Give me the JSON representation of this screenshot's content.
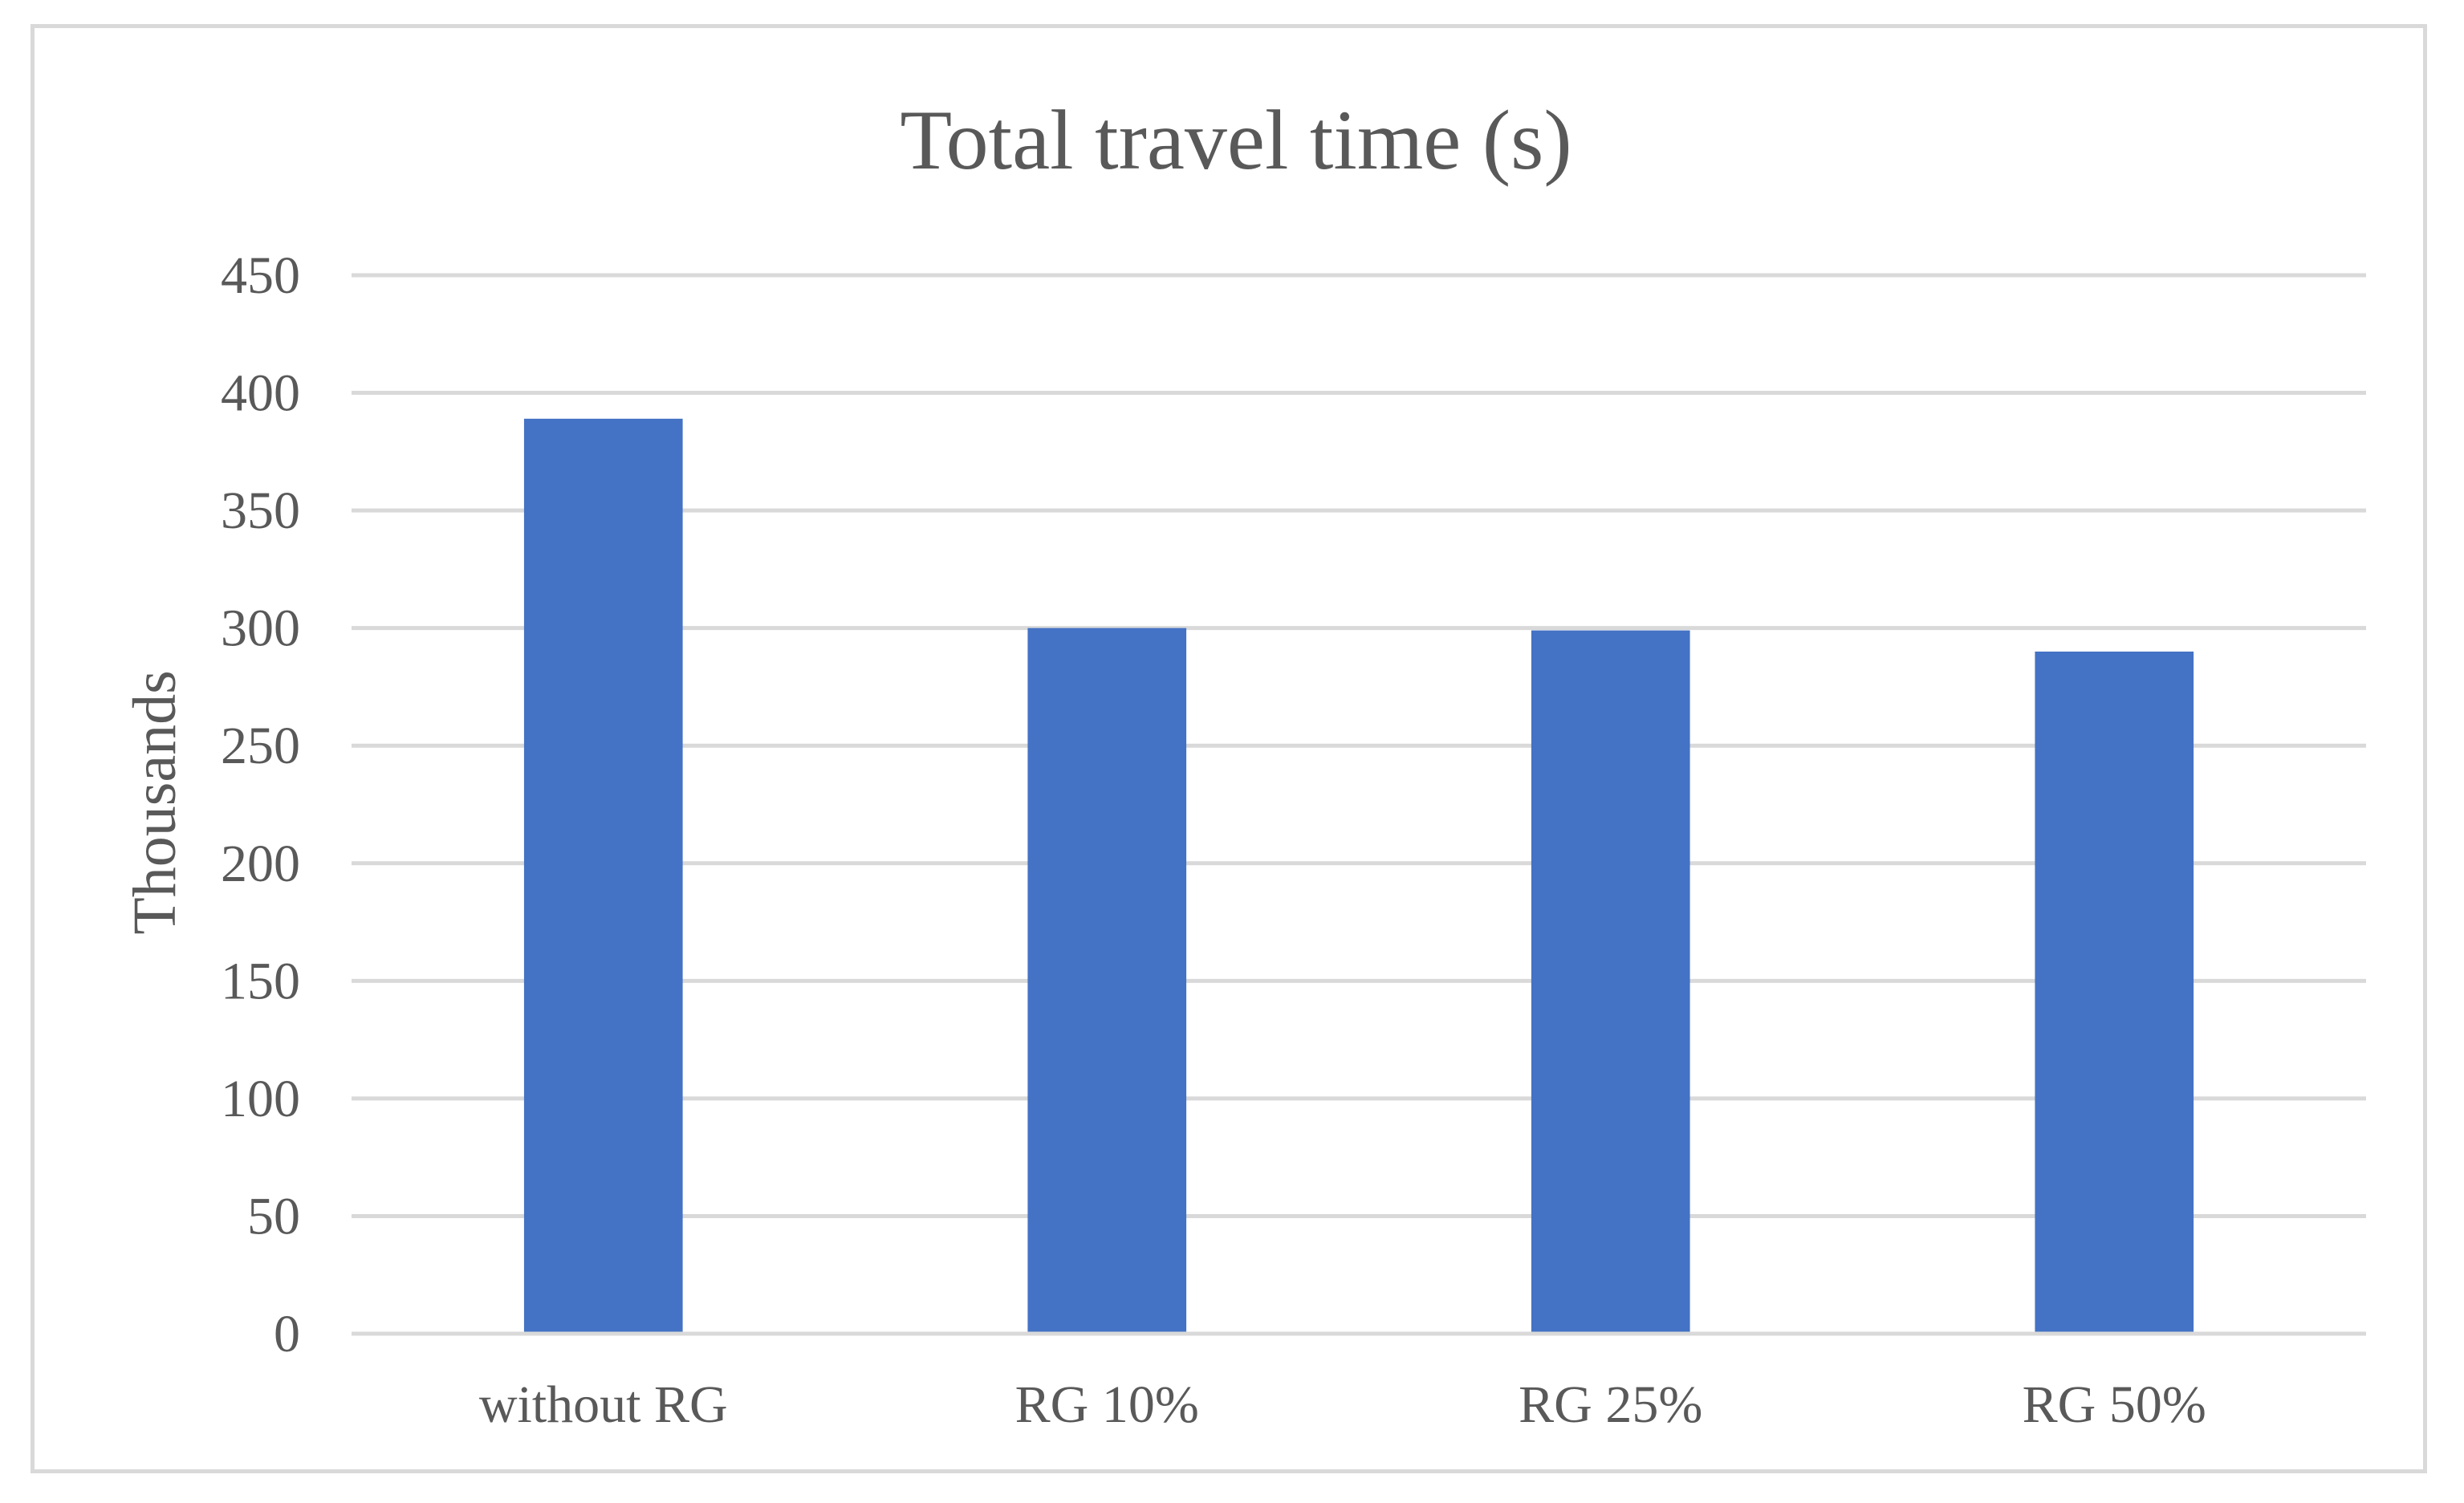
{
  "chart_data": {
    "type": "bar",
    "title": "Total travel time (s)",
    "xlabel": "",
    "ylabel": "Thousands",
    "categories": [
      "without RG",
      "RG 10%",
      "RG 25%",
      "RG 50%"
    ],
    "values": [
      389,
      300,
      299,
      290
    ],
    "ylim": [
      0,
      450
    ],
    "yticks": [
      "0",
      "50",
      "100",
      "150",
      "200",
      "250",
      "300",
      "350",
      "400",
      "450"
    ],
    "ytick_values": [
      0,
      50,
      100,
      150,
      200,
      250,
      300,
      350,
      400,
      450
    ],
    "grid": true,
    "legend": "none",
    "colors": {
      "bar": "#4472C4",
      "grid": "#d9d9d9",
      "text": "#595959",
      "border": "#d9d9d9"
    }
  }
}
